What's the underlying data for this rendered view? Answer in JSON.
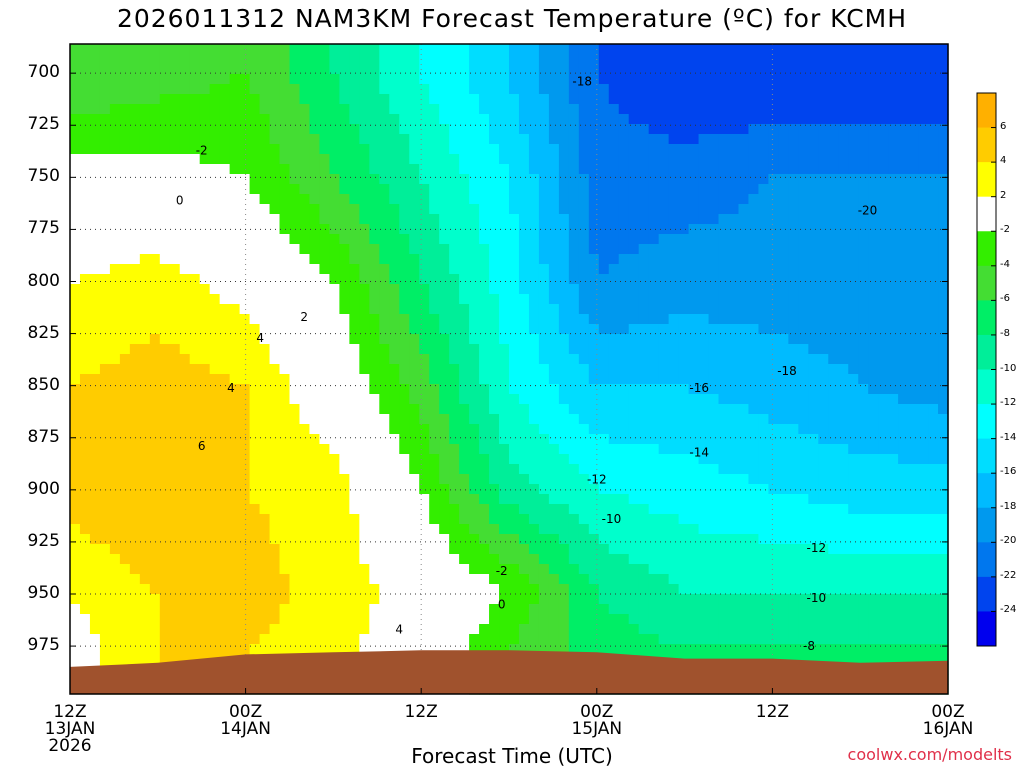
{
  "title": "2026011312 NAM3KM Forecast Temperature (ºC) for KCMH",
  "credit": "coolwx.com/modelts",
  "chart_data": {
    "type": "heatmap",
    "title": "2026011312 NAM3KM Forecast Temperature (ºC) for KCMH",
    "xlabel": "Forecast Time (UTC)",
    "ylabel": "",
    "x_ticks": [
      {
        "label": "12Z",
        "sub": "13JAN",
        "sub2": "2026"
      },
      {
        "label": "00Z",
        "sub": "14JAN",
        "sub2": ""
      },
      {
        "label": "12Z",
        "sub": "",
        "sub2": ""
      },
      {
        "label": "00Z",
        "sub": "15JAN",
        "sub2": ""
      },
      {
        "label": "12Z",
        "sub": "",
        "sub2": ""
      },
      {
        "label": "00Z",
        "sub": "16JAN",
        "sub2": ""
      }
    ],
    "x_hours": [
      0,
      12,
      24,
      36,
      48,
      60
    ],
    "xlim": [
      0,
      60
    ],
    "y_ticks": [
      700,
      725,
      750,
      775,
      800,
      825,
      850,
      875,
      900,
      925,
      950,
      975
    ],
    "ylim": [
      686,
      998
    ],
    "hours": [
      0,
      6,
      12,
      18,
      24,
      30,
      36,
      42,
      48,
      54,
      60
    ],
    "levels": [
      700,
      750,
      800,
      850,
      900,
      950,
      975
    ],
    "values": [
      [
        -6,
        -5,
        -4,
        -8,
        -12,
        -16,
        -22,
        -24,
        -24,
        -24,
        -24
      ],
      [
        -1,
        -1,
        -2,
        -6,
        -10,
        -14,
        -21,
        -21,
        -20,
        -20,
        -20
      ],
      [
        2,
        3,
        1,
        -2,
        -8,
        -13,
        -20,
        -19,
        -19,
        -19,
        -20
      ],
      [
        4,
        5,
        4,
        0,
        -5,
        -12,
        -16,
        -16,
        -17,
        -18,
        -19
      ],
      [
        5,
        6,
        4,
        3,
        -2,
        -9,
        -12,
        -13,
        -14,
        -15,
        -15
      ],
      [
        2,
        4,
        5,
        3,
        1,
        -2,
        -8,
        -10,
        -10,
        -10,
        -10
      ],
      [
        1,
        4,
        4,
        3,
        0,
        -4,
        -7,
        -8,
        -8,
        -8,
        -8
      ]
    ],
    "surface_pressure": [
      985,
      983,
      979,
      978,
      977,
      977,
      978,
      981,
      981,
      983,
      982
    ],
    "contour_labels": [
      {
        "text": "-2",
        "hour": 9,
        "level": 737
      },
      {
        "text": "0",
        "hour": 7.5,
        "level": 761
      },
      {
        "text": "2",
        "hour": 16,
        "level": 817
      },
      {
        "text": "4",
        "hour": 13,
        "level": 827
      },
      {
        "text": "4",
        "hour": 11,
        "level": 851
      },
      {
        "text": "6",
        "hour": 9,
        "level": 879
      },
      {
        "text": "4",
        "hour": 22.5,
        "level": 967
      },
      {
        "text": "-2",
        "hour": 29.5,
        "level": 939
      },
      {
        "text": "0",
        "hour": 29.5,
        "level": 955
      },
      {
        "text": "-18",
        "hour": 35,
        "level": 704
      },
      {
        "text": "-20",
        "hour": 54.5,
        "level": 766
      },
      {
        "text": "-18",
        "hour": 49,
        "level": 843
      },
      {
        "text": "-16",
        "hour": 43,
        "level": 851
      },
      {
        "text": "-14",
        "hour": 43,
        "level": 882
      },
      {
        "text": "-12",
        "hour": 36,
        "level": 895
      },
      {
        "text": "-10",
        "hour": 37,
        "level": 914
      },
      {
        "text": "-12",
        "hour": 51,
        "level": 928
      },
      {
        "text": "-10",
        "hour": 51,
        "level": 952
      },
      {
        "text": "-8",
        "hour": 50.5,
        "level": 975
      }
    ],
    "colorbar": {
      "bins": [
        {
          "min": 6,
          "max": 8,
          "color": "#FFB000"
        },
        {
          "min": 4,
          "max": 6,
          "color": "#FFCC00"
        },
        {
          "min": 2,
          "max": 4,
          "color": "#FFFF00"
        },
        {
          "min": -2,
          "max": 2,
          "color": "#FFFFFF"
        },
        {
          "min": -4,
          "max": -2,
          "color": "#33EE00"
        },
        {
          "min": -6,
          "max": -4,
          "color": "#44DD33"
        },
        {
          "min": -8,
          "max": -6,
          "color": "#00EE66"
        },
        {
          "min": -10,
          "max": -8,
          "color": "#00EE99"
        },
        {
          "min": -12,
          "max": -10,
          "color": "#00FFCC"
        },
        {
          "min": -14,
          "max": -12,
          "color": "#00FFFF"
        },
        {
          "min": -16,
          "max": -14,
          "color": "#00DDFF"
        },
        {
          "min": -18,
          "max": -16,
          "color": "#00BBFF"
        },
        {
          "min": -20,
          "max": -18,
          "color": "#0099EE"
        },
        {
          "min": -22,
          "max": -20,
          "color": "#0077EE"
        },
        {
          "min": -24,
          "max": -22,
          "color": "#0044EE"
        },
        {
          "min": -26,
          "max": -24,
          "color": "#0000EE"
        }
      ],
      "tick_labels": [
        "6",
        "4",
        "2",
        "-2",
        "-4",
        "-6",
        "-8",
        "-10",
        "-12",
        "-14",
        "-16",
        "-18",
        "-20",
        "-22",
        "-24"
      ]
    },
    "grid": true,
    "terrain_color": "#A0522D"
  }
}
